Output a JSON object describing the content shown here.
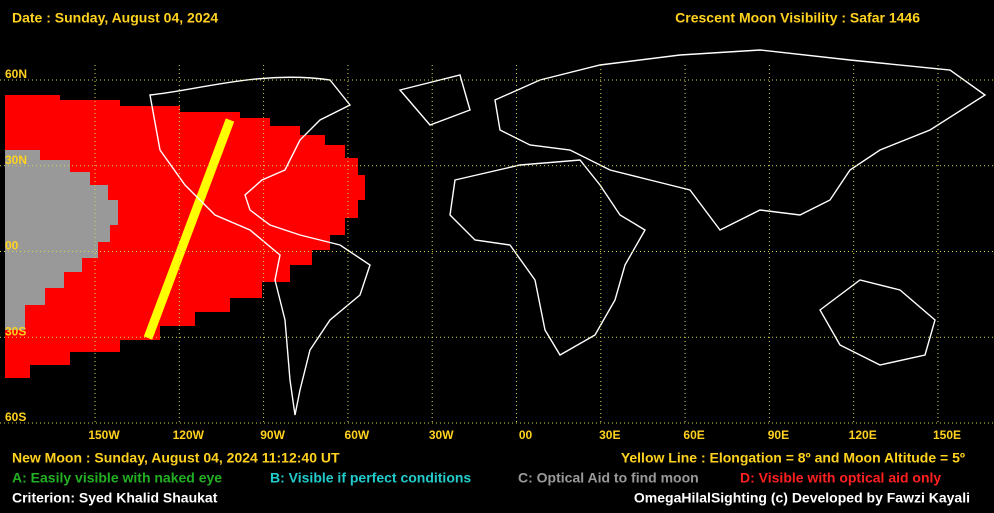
{
  "header": {
    "date": "Date : Sunday, August 04, 2024",
    "title": "Crescent Moon Visibility : Safar  1446"
  },
  "grid": {
    "lat_labels": [
      "60N",
      "30N",
      "00",
      "30S",
      "60S"
    ],
    "lon_labels": [
      "150W",
      "120W",
      "90W",
      "60W",
      "30W",
      "00",
      "30E",
      "60E",
      "90E",
      "120E",
      "150E"
    ]
  },
  "footer": {
    "new_moon": "New Moon : Sunday, August 04, 2024  11:12:40  UT",
    "yellow_line": "Yellow Line : Elongation = 8º  and Moon Altitude = 5º",
    "criterion": "Criterion: Syed Khalid Shaukat",
    "credit": "OmegaHilalSighting  (c)  Developed by Fawzi Kayali"
  },
  "legend": {
    "a": "A: Easily visible with naked eye",
    "b": "B: Visible if perfect conditions",
    "c": "C: Optical Aid to find moon",
    "d": "D: Visible with optical aid only"
  }
}
